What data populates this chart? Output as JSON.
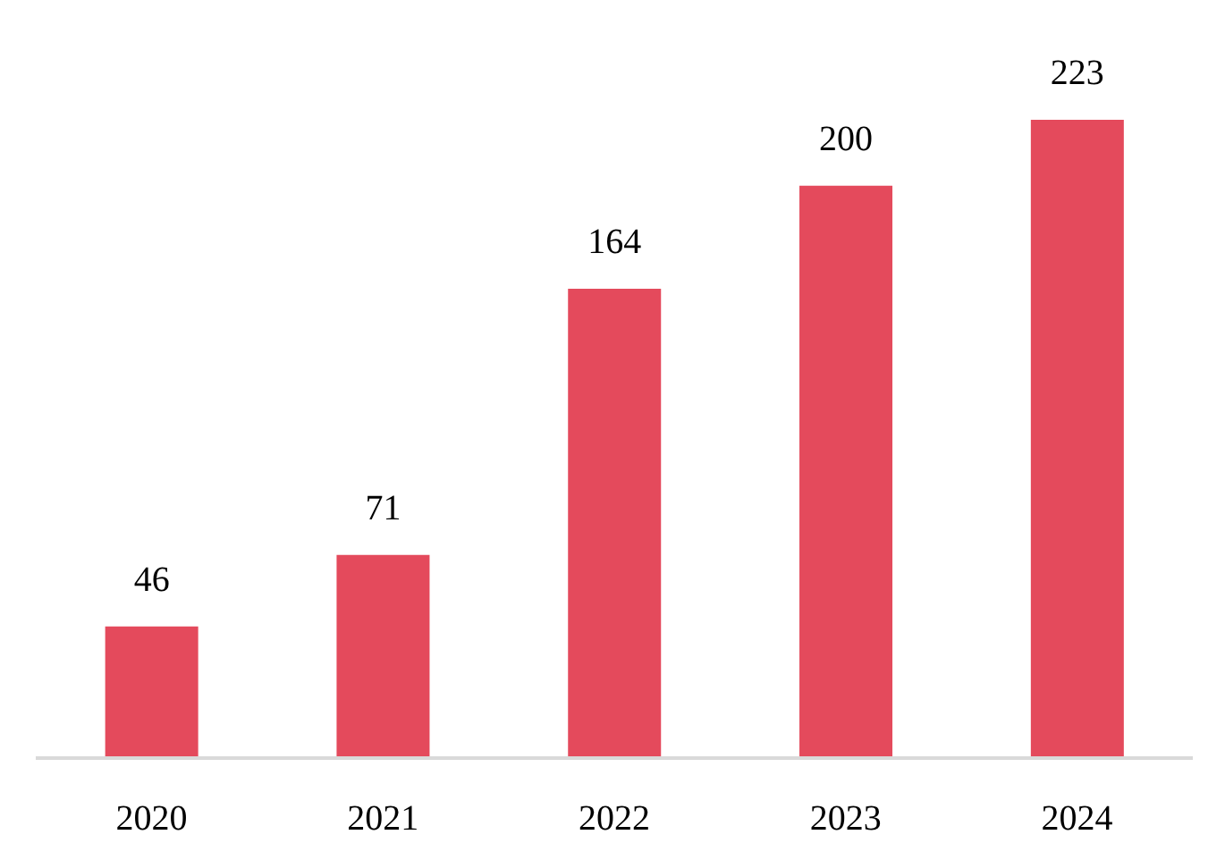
{
  "chart_data": {
    "type": "bar",
    "categories": [
      "2020",
      "2021",
      "2022",
      "2023",
      "2024"
    ],
    "values": [
      46,
      71,
      164,
      200,
      223
    ],
    "color": "#e44a5c",
    "data_labels": true
  }
}
